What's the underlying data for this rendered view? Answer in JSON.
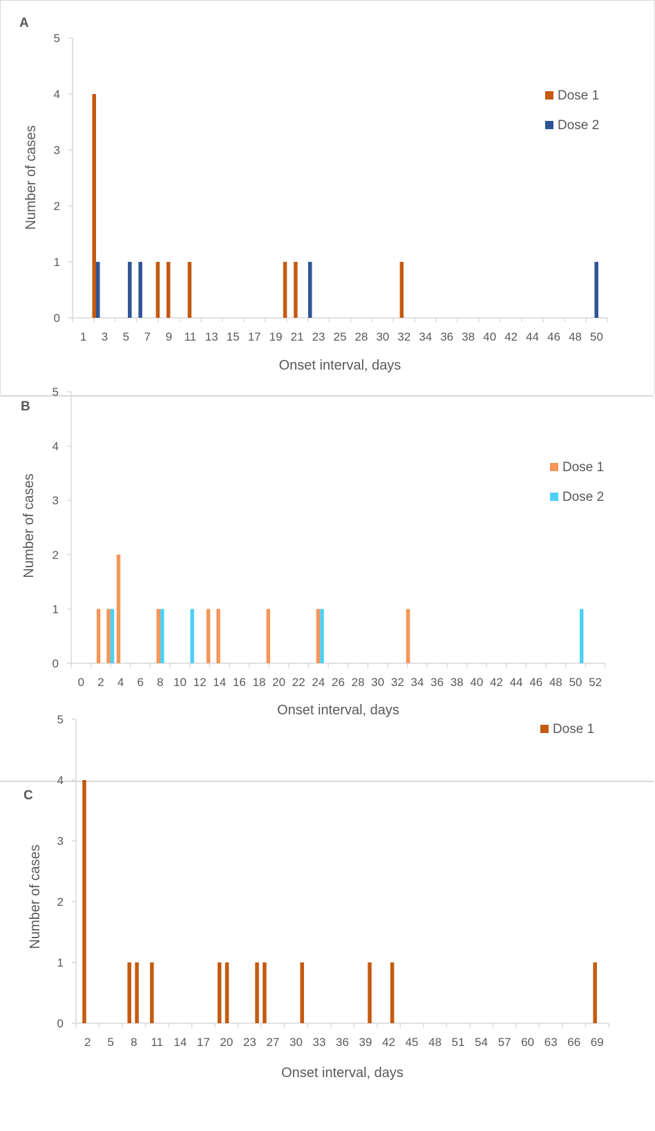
{
  "colors": {
    "a_dose1": "#c55a11",
    "a_dose2": "#2f5597",
    "b_dose1": "#f4975a",
    "b_dose2": "#4dd0f5",
    "c_dose1": "#c55a11",
    "axis": "#d9d9d9",
    "text": "#595959"
  },
  "chart_data": [
    {
      "panel_label": "A",
      "type": "bar",
      "xlabel": "Onset interval, days",
      "ylabel": "Number of cases",
      "ylim": [
        0,
        5
      ],
      "y_ticks": [
        "0",
        "1",
        "2",
        "3",
        "4",
        "5"
      ],
      "x_tick_labels": [
        "1",
        "3",
        "5",
        "7",
        "9",
        "11",
        "13",
        "15",
        "17",
        "19",
        "21",
        "23",
        "25",
        "28",
        "30",
        "32",
        "34",
        "36",
        "38",
        "40",
        "42",
        "44",
        "46",
        "48",
        "50"
      ],
      "legend_position": "top-right",
      "series": [
        {
          "name": "Dose 1",
          "x": [
            1,
            4,
            7,
            8,
            10,
            19,
            20,
            30
          ],
          "values": [
            4,
            0,
            1,
            1,
            1,
            1,
            1,
            1
          ]
        },
        {
          "name": "Dose 2",
          "x": [
            1,
            4,
            5,
            21,
            48
          ],
          "values": [
            1,
            1,
            1,
            1,
            1
          ]
        }
      ]
    },
    {
      "panel_label": "B",
      "type": "bar",
      "xlabel": "Onset interval, days",
      "ylabel": "Number of cases",
      "ylim": [
        0,
        5
      ],
      "y_ticks": [
        "0",
        "1",
        "2",
        "3",
        "4",
        "5"
      ],
      "x_tick_labels": [
        "0",
        "2",
        "4",
        "6",
        "8",
        "10",
        "12",
        "14",
        "16",
        "18",
        "20",
        "22",
        "24",
        "26",
        "28",
        "30",
        "32",
        "34",
        "36",
        "38",
        "40",
        "42",
        "44",
        "46",
        "48",
        "50",
        "52"
      ],
      "legend_position": "top-right",
      "series": [
        {
          "name": "Dose 1",
          "x": [
            4,
            5,
            6,
            10,
            15,
            16,
            21,
            26,
            35
          ],
          "values": [
            1,
            1,
            2,
            1,
            1,
            1,
            1,
            1,
            1
          ]
        },
        {
          "name": "Dose 2",
          "x": [
            5,
            10,
            13,
            26,
            52
          ],
          "values": [
            1,
            1,
            1,
            1,
            1
          ]
        }
      ]
    },
    {
      "panel_label": "C",
      "type": "bar",
      "xlabel": "Onset interval, days",
      "ylabel": "Number of cases",
      "ylim": [
        0,
        5
      ],
      "y_ticks": [
        "0",
        "1",
        "2",
        "3",
        "4",
        "5"
      ],
      "x_tick_labels": [
        "2",
        "5",
        "8",
        "11",
        "14",
        "17",
        "20",
        "23",
        "27",
        "30",
        "33",
        "36",
        "39",
        "42",
        "45",
        "48",
        "51",
        "54",
        "57",
        "60",
        "63",
        "66",
        "69"
      ],
      "legend_position": "top-right",
      "series": [
        {
          "name": "Dose 1",
          "x": [
            1,
            7,
            8,
            10,
            19,
            20,
            24,
            25,
            30,
            39,
            42,
            69
          ],
          "values": [
            4,
            1,
            1,
            1,
            1,
            1,
            1,
            1,
            1,
            1,
            1,
            1
          ]
        }
      ]
    }
  ]
}
